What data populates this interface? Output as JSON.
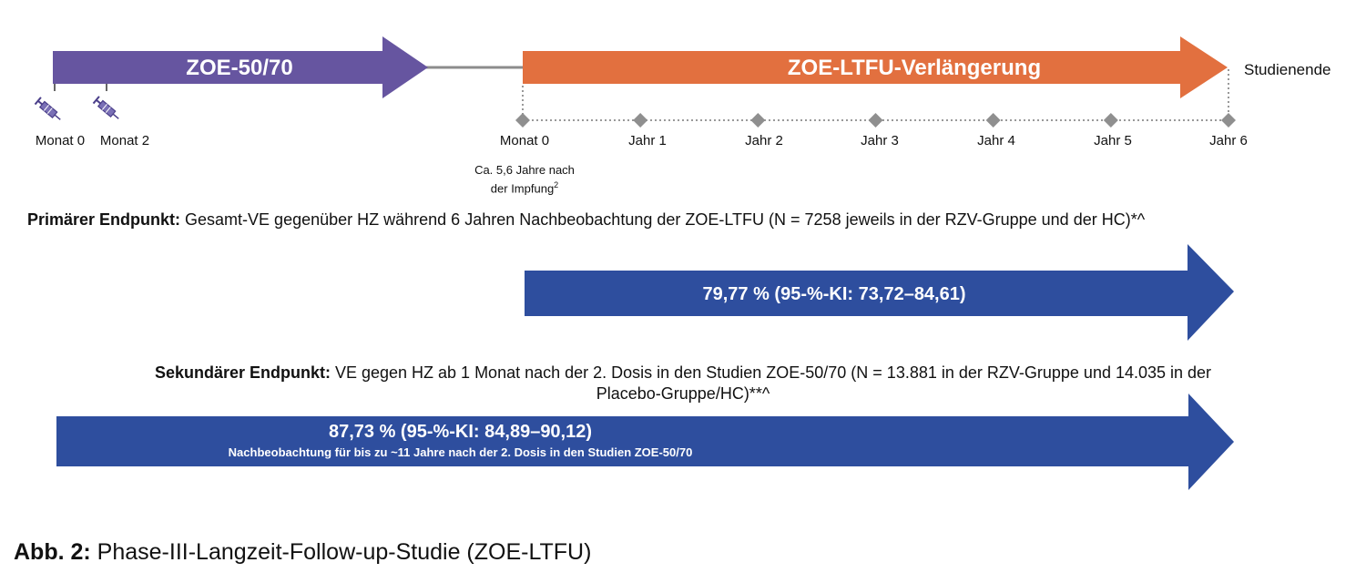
{
  "phase_arrow": {
    "label": "ZOE-50/70",
    "color": "#6655a0"
  },
  "ltfu_arrow": {
    "label": "ZOE-LTFU-Verlängerung",
    "color": "#e2703f"
  },
  "study_end_label": "Studienende",
  "vaccination_icon": "syringe-icon",
  "phase_ticks": [
    "Monat 0",
    "Monat 2"
  ],
  "ltfu_ticks": [
    "Monat 0",
    "Jahr 1",
    "Jahr 2",
    "Jahr 3",
    "Jahr 4",
    "Jahr 5",
    "Jahr 6"
  ],
  "ltfu_start_note": {
    "line1": "Ca. 5,6 Jahre nach",
    "line2": "der Impfung",
    "superscript": "2"
  },
  "primary": {
    "heading": "Primärer Endpunkt:",
    "text": " Gesamt-VE gegenüber HZ während 6 Jahren Nachbeobachtung der ZOE-LTFU (N = 7258 jeweils in der RZV-Gruppe und der HC)*^",
    "result": "79,77 % (95-%-KI: 73,72–84,61)"
  },
  "secondary": {
    "heading": "Sekundärer Endpunkt:",
    "text_line1": " VE gegen HZ ab 1 Monat nach der 2. Dosis in den Studien ZOE-50/70 (N = 13.881 in der RZV-Gruppe und 14.035 in der",
    "text_line2": "Placebo-Gruppe/HC)**^",
    "result": "87,73 % (95-%-KI: 84,89–90,12)",
    "result_note": "Nachbeobachtung für bis zu ~11 Jahre nach der 2. Dosis in den Studien ZOE-50/70"
  },
  "result_arrow_color": "#2e4e9e",
  "caption": {
    "label": "Abb. 2:",
    "text": " Phase-III-Langzeit-Follow-up-Studie (ZOE-LTFU)"
  }
}
